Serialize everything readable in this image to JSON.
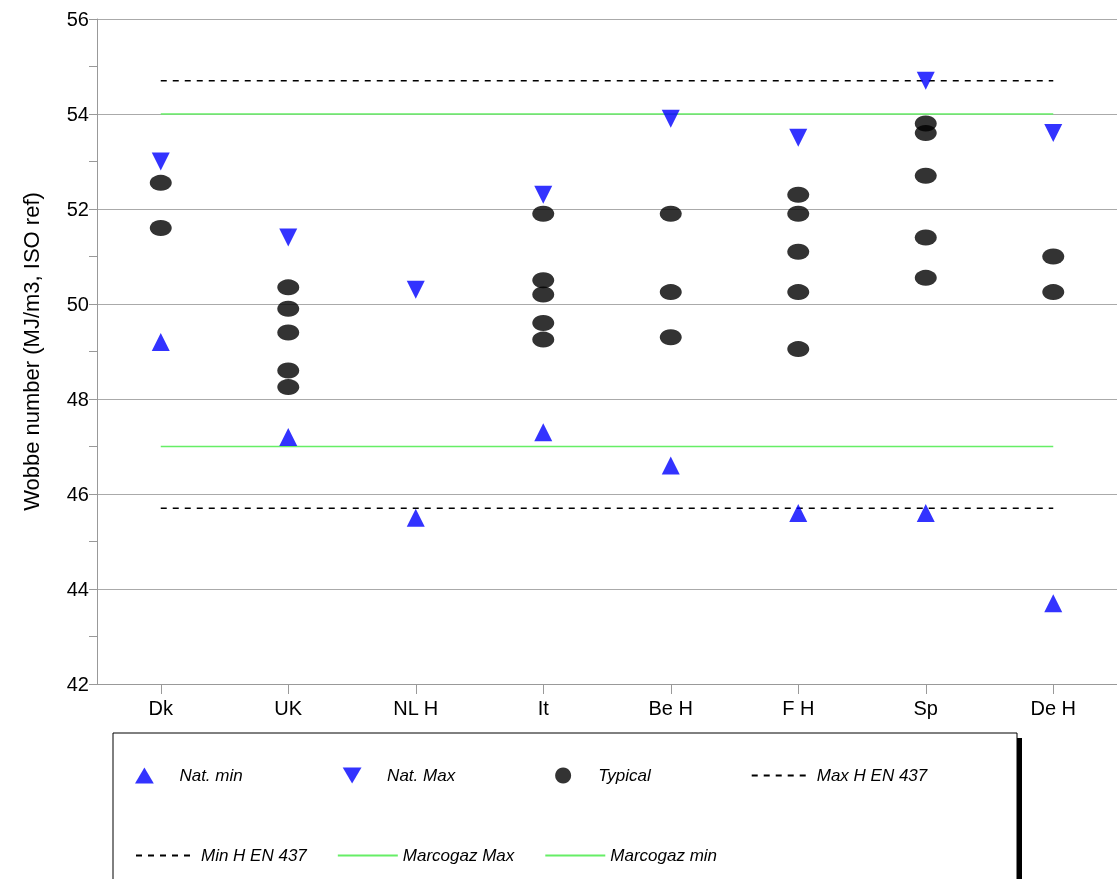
{
  "chart_data": {
    "type": "scatter",
    "ylabel": "Wobbe number (MJ/m3, ISO ref)",
    "categories": [
      "Dk",
      "UK",
      "NL H",
      "It",
      "Be H",
      "F H",
      "Sp",
      "De H"
    ],
    "ylim": [
      42,
      56
    ],
    "yticks": [
      42,
      {
        "value": 43,
        "label": null
      },
      44,
      {
        "value": 45,
        "label": null
      },
      46,
      {
        "value": 47,
        "label": null
      },
      48,
      {
        "value": 49,
        "label": null
      },
      50,
      {
        "value": 51,
        "label": null
      },
      52,
      {
        "value": 53,
        "label": null
      },
      54,
      {
        "value": 55,
        "label": null
      },
      56
    ],
    "grid": "y",
    "legend": "bottom",
    "series": [
      {
        "name": "Nat. min",
        "color": "#0000ff",
        "marker": "triangle",
        "x": [
          "Dk",
          "UK",
          "NL H",
          "It",
          "Be H",
          "F H",
          "Sp",
          "De H"
        ],
        "values": [
          49.2,
          47.2,
          45.5,
          47.3,
          46.6,
          45.6,
          45.6,
          43.7
        ]
      },
      {
        "name": "Nat. Max",
        "color": "#0000ff",
        "marker": "triangle-down",
        "x": [
          "Dk",
          "UK",
          "NL H",
          "It",
          "Be H",
          "F H",
          "Sp",
          "De H"
        ],
        "values": [
          53.0,
          51.4,
          50.3,
          52.3,
          53.9,
          53.5,
          54.7,
          53.6
        ]
      },
      {
        "name": "Typical",
        "color": "#000000",
        "marker": "circle",
        "x": [
          "Dk",
          "Dk",
          "UK",
          "UK",
          "UK",
          "UK",
          "UK",
          "It",
          "It",
          "It",
          "It",
          "It",
          "Be H",
          "Be H",
          "Be H",
          "F H",
          "F H",
          "F H",
          "F H",
          "F H",
          "Sp",
          "Sp",
          "Sp",
          "Sp",
          "Sp",
          "De H",
          "De H"
        ],
        "values": [
          52.55,
          51.6,
          50.35,
          49.9,
          49.4,
          48.6,
          48.25,
          51.9,
          50.5,
          50.2,
          49.6,
          49.25,
          51.9,
          50.25,
          49.3,
          52.3,
          51.9,
          51.1,
          50.25,
          49.05,
          53.8,
          53.6,
          52.7,
          51.4,
          50.55,
          51.0,
          50.25
        ]
      }
    ],
    "ref_lines": [
      {
        "axis": "y",
        "value": 54.7,
        "label": "Max H EN 437",
        "color": "#000000",
        "line_style": "dashed"
      },
      {
        "axis": "y",
        "value": 45.7,
        "label": "Min H EN 437",
        "color": "#000000",
        "line_style": "dashed"
      },
      {
        "axis": "y",
        "value": 54,
        "label": "Marcogaz Max",
        "color": "#66ee66",
        "line_style": "solid"
      },
      {
        "axis": "y",
        "value": 47,
        "label": "Marcogaz min",
        "color": "#66ee66",
        "line_style": "solid"
      }
    ]
  }
}
